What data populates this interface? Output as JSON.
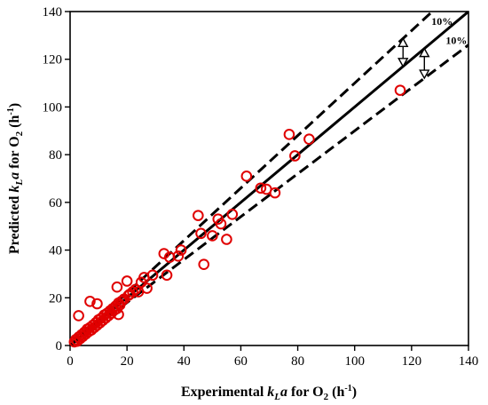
{
  "chart_data": {
    "type": "scatter",
    "xlabel": "Experimental k_L a for O₂ (h⁻¹)",
    "ylabel": "Predicted k_L a for O₂ (h⁻¹)",
    "xlim": [
      0,
      140
    ],
    "ylim": [
      0,
      140
    ],
    "x_ticks": [
      "0",
      "20",
      "40",
      "60",
      "80",
      "100",
      "120",
      "140"
    ],
    "y_ticks": [
      "0",
      "20",
      "40",
      "60",
      "80",
      "100",
      "120",
      "140"
    ],
    "grid": false,
    "marker": "open circle",
    "marker_color": "#e00000",
    "lines": [
      {
        "kind": "parity",
        "slope": 1.0,
        "style": "solid"
      },
      {
        "kind": "upper bound",
        "slope": 1.1,
        "style": "dashed"
      },
      {
        "kind": "lower bound",
        "slope": 0.9,
        "style": "dashed"
      }
    ],
    "annotations": [
      "10%",
      "10%"
    ],
    "points": [
      [
        1.5,
        1.5
      ],
      [
        2,
        2.5
      ],
      [
        2.5,
        1.8
      ],
      [
        3,
        3.5
      ],
      [
        3.5,
        2.8
      ],
      [
        4,
        4.5
      ],
      [
        4.5,
        3.8
      ],
      [
        3,
        12.5
      ],
      [
        5,
        5.5
      ],
      [
        5.5,
        4.8
      ],
      [
        6,
        6.8
      ],
      [
        6.5,
        5.8
      ],
      [
        7,
        7.5
      ],
      [
        7.5,
        6.5
      ],
      [
        8,
        8.5
      ],
      [
        8.5,
        7.5
      ],
      [
        9,
        9.5
      ],
      [
        9.5,
        8.5
      ],
      [
        10,
        10.8
      ],
      [
        10.5,
        9.5
      ],
      [
        7,
        18.5
      ],
      [
        9.5,
        17.5
      ],
      [
        11,
        11.5
      ],
      [
        11.5,
        10.5
      ],
      [
        12,
        12.8
      ],
      [
        12.5,
        11.5
      ],
      [
        13,
        13.5
      ],
      [
        13.5,
        12.5
      ],
      [
        14,
        14.5
      ],
      [
        14.5,
        13.5
      ],
      [
        15,
        15.5
      ],
      [
        15.5,
        14.8
      ],
      [
        16,
        16.5
      ],
      [
        16.5,
        15.5
      ],
      [
        17,
        17.8
      ],
      [
        17,
        13
      ],
      [
        17.5,
        17
      ],
      [
        18,
        18.5
      ],
      [
        16.5,
        24.5
      ],
      [
        19,
        19.5
      ],
      [
        20,
        27
      ],
      [
        20.5,
        21
      ],
      [
        21,
        21.5
      ],
      [
        22,
        22.5
      ],
      [
        23,
        23.5
      ],
      [
        24,
        22.5
      ],
      [
        25,
        26.5
      ],
      [
        26,
        28.5
      ],
      [
        27,
        24
      ],
      [
        29,
        29.5
      ],
      [
        33,
        38.5
      ],
      [
        34,
        29.5
      ],
      [
        35,
        37
      ],
      [
        38,
        37.5
      ],
      [
        39,
        40
      ],
      [
        45,
        54.5
      ],
      [
        46,
        47
      ],
      [
        47,
        34
      ],
      [
        50,
        46
      ],
      [
        52,
        53
      ],
      [
        53,
        51
      ],
      [
        55,
        44.5
      ],
      [
        57,
        55
      ],
      [
        62,
        71
      ],
      [
        67,
        66
      ],
      [
        69,
        65.5
      ],
      [
        72,
        64
      ],
      [
        77,
        88.5
      ],
      [
        79,
        79.5
      ],
      [
        84,
        86.5
      ],
      [
        116,
        107
      ]
    ]
  }
}
